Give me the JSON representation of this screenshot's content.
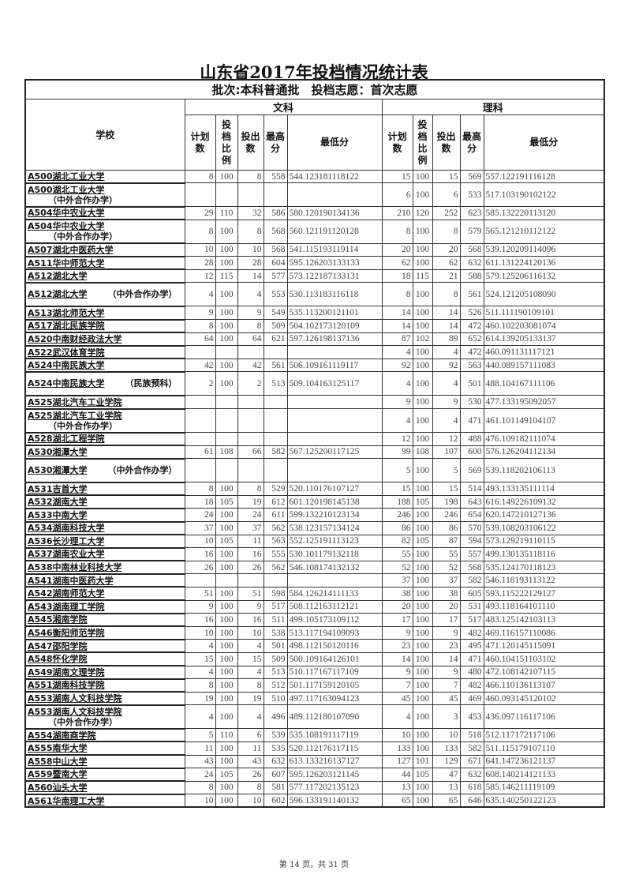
{
  "title": "山东省2017年投档情况统计表",
  "batch_header": "批次:本科普通批　投档志愿：首次志愿",
  "columns": {
    "school": "学校",
    "group_wen": "文科",
    "group_li": "理科",
    "plan": "计划数",
    "ratio": "投档比例",
    "out": "投出数",
    "max": "最高分",
    "min": "最低分"
  },
  "rows": [
    {
      "name": "A500湖北工业大学",
      "suffix": "",
      "v": [
        "8",
        "100",
        "8",
        "558",
        "544.123181118122",
        "15",
        "100",
        "15",
        "569",
        "557.122191116128"
      ]
    },
    {
      "name": "A500湖北工业大学",
      "suffix": "（中外合作办学）",
      "v": [
        "",
        "",
        "",
        "",
        "",
        "6",
        "100",
        "6",
        "533",
        "517.103190102122"
      ]
    },
    {
      "name": "A504华中农业大学",
      "suffix": "",
      "v": [
        "29",
        "110",
        "32",
        "586",
        "580.120190134136",
        "210",
        "120",
        "252",
        "623",
        "585.132220113120"
      ]
    },
    {
      "name": "A504华中农业大学",
      "suffix": "（中外合作办学）",
      "v": [
        "8",
        "100",
        "8",
        "568",
        "560.121191120128",
        "8",
        "100",
        "8",
        "579",
        "565.121210112122"
      ]
    },
    {
      "name": "A507湖北中医药大学",
      "suffix": "",
      "v": [
        "10",
        "100",
        "10",
        "568",
        "541.115193119114",
        "20",
        "100",
        "20",
        "568",
        "539.120209114096"
      ]
    },
    {
      "name": "A511华中师范大学",
      "suffix": "",
      "v": [
        "28",
        "100",
        "28",
        "604",
        "595.126203133133",
        "62",
        "100",
        "62",
        "632",
        "611.131224120136"
      ]
    },
    {
      "name": "A512湖北大学",
      "suffix": "",
      "v": [
        "12",
        "115",
        "14",
        "577",
        "573.122187133131",
        "18",
        "115",
        "21",
        "588",
        "579.125206116132"
      ]
    },
    {
      "name": "A512湖北大学",
      "suffix": "（中外合作办学）",
      "v": [
        "4",
        "100",
        "4",
        "553",
        "530.113183116118",
        "8",
        "100",
        "8",
        "561",
        "524.121205108090"
      ]
    },
    {
      "name": "A513湖北师范大学",
      "suffix": "",
      "v": [
        "9",
        "100",
        "9",
        "549",
        "535.113200121101",
        "14",
        "100",
        "14",
        "526",
        "511.111190109101"
      ]
    },
    {
      "name": "A517湖北民族学院",
      "suffix": "",
      "v": [
        "8",
        "100",
        "8",
        "509",
        "504.102173120109",
        "14",
        "100",
        "14",
        "472",
        "460.102203081074"
      ]
    },
    {
      "name": "A520中南财经政法大学",
      "suffix": "",
      "v": [
        "64",
        "100",
        "64",
        "621",
        "597.126198137136",
        "87",
        "102",
        "89",
        "652",
        "614.139205133137"
      ]
    },
    {
      "name": "A522武汉体育学院",
      "suffix": "",
      "v": [
        "",
        "",
        "",
        "",
        "",
        "4",
        "100",
        "4",
        "472",
        "460.091131117121"
      ]
    },
    {
      "name": "A524中南民族大学",
      "suffix": "",
      "v": [
        "42",
        "100",
        "42",
        "561",
        "506.109161119117",
        "92",
        "100",
        "92",
        "563",
        "440.089157111083"
      ]
    },
    {
      "name": "A524中南民族大学",
      "suffix": "（民族预科）",
      "v": [
        "2",
        "100",
        "2",
        "513",
        "509.104163125117",
        "4",
        "100",
        "4",
        "501",
        "488.104167111106"
      ]
    },
    {
      "name": "A525湖北汽车工业学院",
      "suffix": "",
      "v": [
        "",
        "",
        "",
        "",
        "",
        "9",
        "100",
        "9",
        "530",
        "477.133195092057"
      ]
    },
    {
      "name": "A525湖北汽车工业学院",
      "suffix": "（中外合作办学）",
      "v": [
        "",
        "",
        "",
        "",
        "",
        "4",
        "100",
        "4",
        "471",
        "461.101149104107"
      ]
    },
    {
      "name": "A528湖北工程学院",
      "suffix": "",
      "v": [
        "",
        "",
        "",
        "",
        "",
        "12",
        "100",
        "12",
        "488",
        "476.109182111074"
      ]
    },
    {
      "name": "A530湘潭大学",
      "suffix": "",
      "v": [
        "61",
        "108",
        "66",
        "582",
        "567.125200117125",
        "99",
        "108",
        "107",
        "600",
        "576.126204112134"
      ]
    },
    {
      "name": "A530湘潭大学",
      "suffix": "（中外合作办学）",
      "v": [
        "",
        "",
        "",
        "",
        "",
        "5",
        "100",
        "5",
        "569",
        "539.118202106113"
      ]
    },
    {
      "name": "A531吉首大学",
      "suffix": "",
      "v": [
        "8",
        "100",
        "8",
        "529",
        "520.110176107127",
        "15",
        "100",
        "15",
        "514",
        "493.133135111114"
      ]
    },
    {
      "name": "A532湖南大学",
      "suffix": "",
      "v": [
        "18",
        "105",
        "19",
        "612",
        "601.120198145138",
        "188",
        "105",
        "198",
        "643",
        "616.149226109132"
      ]
    },
    {
      "name": "A533中南大学",
      "suffix": "",
      "v": [
        "24",
        "100",
        "24",
        "611",
        "599.132210123134",
        "246",
        "100",
        "246",
        "654",
        "620.147210127136"
      ]
    },
    {
      "name": "A534湖南科技大学",
      "suffix": "",
      "v": [
        "37",
        "100",
        "37",
        "562",
        "538.123157134124",
        "86",
        "100",
        "86",
        "570",
        "539.108203106122"
      ]
    },
    {
      "name": "A536长沙理工大学",
      "suffix": "",
      "v": [
        "10",
        "105",
        "11",
        "563",
        "552.125191113123",
        "82",
        "105",
        "87",
        "594",
        "573.129219110115"
      ]
    },
    {
      "name": "A537湖南农业大学",
      "suffix": "",
      "v": [
        "16",
        "100",
        "16",
        "555",
        "530.101179132118",
        "55",
        "100",
        "55",
        "557",
        "499.130135118116"
      ]
    },
    {
      "name": "A538中南林业科技大学",
      "suffix": "",
      "v": [
        "26",
        "100",
        "26",
        "562",
        "546.108174132132",
        "52",
        "100",
        "52",
        "568",
        "535.124170118123"
      ]
    },
    {
      "name": "A541湖南中医药大学",
      "suffix": "",
      "v": [
        "",
        "",
        "",
        "",
        "",
        "37",
        "100",
        "37",
        "582",
        "546.118193113122"
      ]
    },
    {
      "name": "A542湖南师范大学",
      "suffix": "",
      "v": [
        "51",
        "100",
        "51",
        "598",
        "584.126214111133",
        "38",
        "100",
        "38",
        "605",
        "593.115222129127"
      ]
    },
    {
      "name": "A543湖南理工学院",
      "suffix": "",
      "v": [
        "9",
        "100",
        "9",
        "517",
        "508.112163112121",
        "20",
        "100",
        "20",
        "531",
        "493.118164101110"
      ]
    },
    {
      "name": "A545湘南学院",
      "suffix": "",
      "v": [
        "16",
        "100",
        "16",
        "511",
        "499.105173109112",
        "17",
        "100",
        "17",
        "517",
        "483.125142103113"
      ]
    },
    {
      "name": "A546衡阳师范学院",
      "suffix": "",
      "v": [
        "10",
        "100",
        "10",
        "538",
        "513.117194109093",
        "9",
        "100",
        "9",
        "482",
        "469.116157110086"
      ]
    },
    {
      "name": "A547邵阳学院",
      "suffix": "",
      "v": [
        "4",
        "100",
        "4",
        "501",
        "498.112150120116",
        "23",
        "100",
        "23",
        "495",
        "471.120145115091"
      ]
    },
    {
      "name": "A548怀化学院",
      "suffix": "",
      "v": [
        "15",
        "100",
        "15",
        "509",
        "500.109164126101",
        "14",
        "100",
        "14",
        "471",
        "460.104151103102"
      ]
    },
    {
      "name": "A549湖南文理学院",
      "suffix": "",
      "v": [
        "4",
        "100",
        "4",
        "513",
        "510.117167117109",
        "9",
        "100",
        "9",
        "480",
        "472.108142107115"
      ]
    },
    {
      "name": "A551湖南科技学院",
      "suffix": "",
      "v": [
        "8",
        "100",
        "8",
        "512",
        "501.117159120105",
        "7",
        "100",
        "7",
        "482",
        "466.110136113107"
      ]
    },
    {
      "name": "A553湖南人文科技学院",
      "suffix": "",
      "v": [
        "19",
        "100",
        "19",
        "510",
        "497.117163094123",
        "45",
        "100",
        "45",
        "469",
        "460.093145120102"
      ]
    },
    {
      "name": "A553湖南人文科技学院",
      "suffix": "（中外合作办学）",
      "v": [
        "4",
        "100",
        "4",
        "496",
        "489.112180107090",
        "4",
        "100",
        "3",
        "453",
        "436.097116117106"
      ]
    },
    {
      "name": "A554湖南商学院",
      "suffix": "",
      "v": [
        "5",
        "110",
        "6",
        "539",
        "535.108191117119",
        "10",
        "100",
        "10",
        "518",
        "512.117172117106"
      ]
    },
    {
      "name": "A555南华大学",
      "suffix": "",
      "v": [
        "11",
        "100",
        "11",
        "535",
        "520.112176117115",
        "133",
        "100",
        "133",
        "582",
        "511.115179107110"
      ]
    },
    {
      "name": "A558中山大学",
      "suffix": "",
      "v": [
        "43",
        "100",
        "43",
        "632",
        "613.133216137127",
        "127",
        "101",
        "129",
        "671",
        "641.147236121137"
      ]
    },
    {
      "name": "A559暨南大学",
      "suffix": "",
      "v": [
        "24",
        "105",
        "26",
        "607",
        "595.126203121145",
        "44",
        "105",
        "47",
        "632",
        "608.140214121133"
      ]
    },
    {
      "name": "A560汕头大学",
      "suffix": "",
      "v": [
        "8",
        "100",
        "8",
        "581",
        "577.117202135123",
        "13",
        "100",
        "13",
        "618",
        "585.146211119109"
      ]
    },
    {
      "name": "A561华南理工大学",
      "suffix": "",
      "v": [
        "10",
        "100",
        "10",
        "602",
        "596.133191140132",
        "65",
        "100",
        "65",
        "646",
        "635.140250122123"
      ]
    }
  ],
  "footer": "第 14 页，共 31 页"
}
